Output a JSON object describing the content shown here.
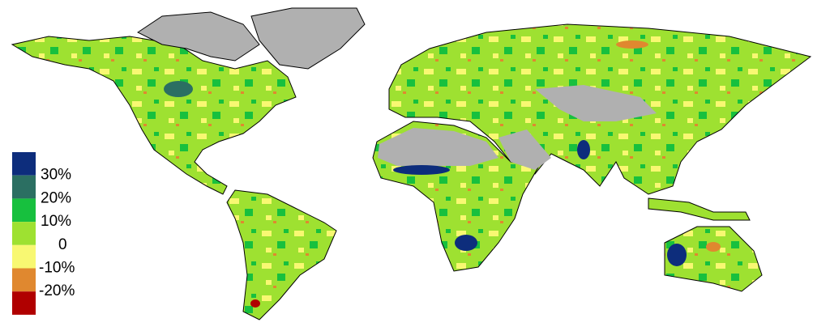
{
  "legend": {
    "colors": [
      "#0d2d7c",
      "#2b6f62",
      "#17c03e",
      "#9ee131",
      "#f8f872",
      "#e0882f",
      "#b00000"
    ],
    "labels": [
      "30%",
      "20%",
      "10%",
      "0",
      "-10%",
      "-20%"
    ]
  }
}
